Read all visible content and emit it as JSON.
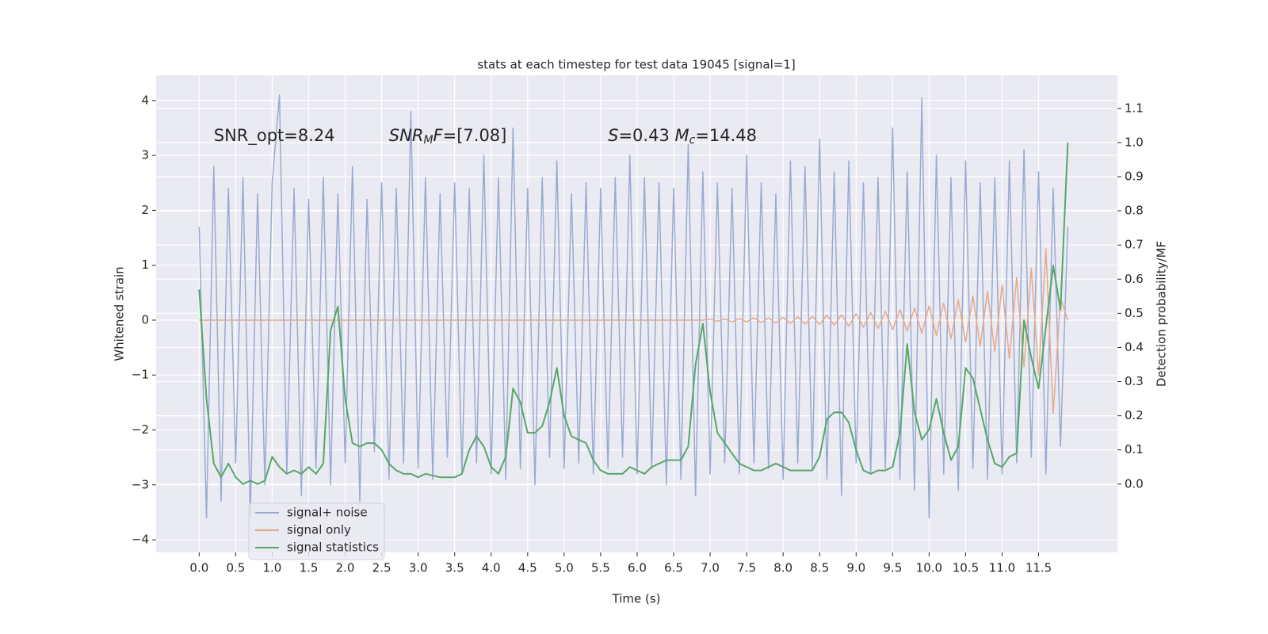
{
  "chart_data": {
    "type": "line",
    "title": "stats at each timestep for test data 19045 [signal=1]",
    "xlabel": "Time (s)",
    "ylabel": "Whitened strain",
    "y2label": "Detection probability/MF",
    "annotations": [
      {
        "x": 0.2,
        "y": 3.35,
        "parts": [
          {
            "text": "SNR_opt=8.24"
          }
        ]
      },
      {
        "x": 2.6,
        "y": 3.35,
        "parts": [
          {
            "text": "SNR",
            "italic": true
          },
          {
            "text": "M",
            "italic": true,
            "sub": true
          },
          {
            "text": "F",
            "italic": true
          },
          {
            "text": "=[7.08]"
          }
        ]
      },
      {
        "x": 5.6,
        "y": 3.35,
        "parts": [
          {
            "text": "S",
            "italic": true
          },
          {
            "text": "=0.43   "
          },
          {
            "text": "M",
            "italic": true
          },
          {
            "text": "c",
            "italic": true,
            "sub": true
          },
          {
            "text": "=14.48"
          }
        ]
      }
    ],
    "x": [
      0.0,
      0.1,
      0.2,
      0.3,
      0.4,
      0.5,
      0.6,
      0.7,
      0.8,
      0.9,
      1.0,
      1.1,
      1.2,
      1.3,
      1.4,
      1.5,
      1.6,
      1.7,
      1.8,
      1.9,
      2.0,
      2.1,
      2.2,
      2.3,
      2.4,
      2.5,
      2.6,
      2.7,
      2.8,
      2.9,
      3.0,
      3.1,
      3.2,
      3.3,
      3.4,
      3.5,
      3.6,
      3.7,
      3.8,
      3.9,
      4.0,
      4.1,
      4.2,
      4.3,
      4.4,
      4.5,
      4.6,
      4.7,
      4.8,
      4.9,
      5.0,
      5.1,
      5.2,
      5.3,
      5.4,
      5.5,
      5.6,
      5.7,
      5.8,
      5.9,
      6.0,
      6.1,
      6.2,
      6.3,
      6.4,
      6.5,
      6.6,
      6.7,
      6.8,
      6.9,
      7.0,
      7.1,
      7.2,
      7.3,
      7.4,
      7.5,
      7.6,
      7.7,
      7.8,
      7.9,
      8.0,
      8.1,
      8.2,
      8.3,
      8.4,
      8.5,
      8.6,
      8.7,
      8.8,
      8.9,
      9.0,
      9.1,
      9.2,
      9.3,
      9.4,
      9.5,
      9.6,
      9.7,
      9.8,
      9.9,
      10.0,
      10.1,
      10.2,
      10.3,
      10.4,
      10.5,
      10.6,
      10.7,
      10.8,
      10.9,
      11.0,
      11.1,
      11.2,
      11.3,
      11.4,
      11.5,
      11.6,
      11.7,
      11.8,
      11.9
    ],
    "series": [
      {
        "name": "signal+ noise",
        "color": "#9aabd0",
        "axis": "y",
        "values": [
          1.7,
          -3.6,
          2.8,
          -3.3,
          2.4,
          -2.6,
          2.6,
          -3.6,
          2.3,
          -3.0,
          2.5,
          4.1,
          -2.8,
          2.4,
          -3.2,
          2.2,
          -2.7,
          2.6,
          -3.0,
          2.3,
          -2.6,
          2.8,
          -3.3,
          2.2,
          -2.4,
          2.5,
          -2.9,
          2.4,
          -2.6,
          3.8,
          -2.7,
          2.6,
          -2.9,
          2.3,
          -2.5,
          2.5,
          -2.8,
          2.4,
          -2.6,
          3.0,
          -2.8,
          2.6,
          -2.9,
          3.5,
          -2.7,
          2.4,
          -3.0,
          2.6,
          -2.5,
          2.9,
          -2.7,
          2.3,
          -2.6,
          2.5,
          -2.8,
          2.4,
          -2.7,
          2.6,
          -2.5,
          3.0,
          -2.8,
          2.6,
          -2.7,
          2.5,
          -3.0,
          2.4,
          -2.9,
          3.2,
          -3.2,
          2.7,
          -2.8,
          2.5,
          -2.6,
          2.4,
          -2.8,
          3.0,
          -2.6,
          2.5,
          -2.7,
          2.3,
          -2.9,
          2.9,
          -2.6,
          2.8,
          -2.7,
          3.3,
          -2.9,
          2.7,
          -3.2,
          2.9,
          -2.6,
          2.5,
          -2.8,
          2.6,
          -2.7,
          3.5,
          -2.9,
          2.7,
          -3.1,
          4.05,
          -3.6,
          3.0,
          -2.8,
          2.6,
          -3.1,
          2.9,
          -2.7,
          2.5,
          -2.9,
          2.6,
          -2.8,
          2.9,
          -2.6,
          3.1,
          -2.5,
          2.7,
          -2.8,
          2.4,
          -2.3,
          1.7
        ]
      },
      {
        "name": "signal only",
        "color": "#e8a98a",
        "axis": "y",
        "values": [
          0,
          0,
          0,
          0,
          0,
          0,
          0,
          0,
          0,
          0,
          0,
          0,
          0,
          0,
          0,
          0,
          0,
          0,
          0,
          0,
          0,
          0,
          0,
          0,
          0,
          0,
          0,
          0,
          0,
          0,
          0,
          0,
          0,
          0,
          0,
          0,
          0,
          0,
          0,
          0,
          0,
          0,
          0,
          0,
          0,
          0,
          0,
          0,
          0,
          0,
          0,
          0,
          0,
          0,
          0,
          0,
          0,
          0,
          0,
          0,
          0,
          0,
          0,
          0,
          0,
          0,
          0,
          0,
          0,
          0,
          0.02,
          -0.02,
          0.02,
          -0.03,
          0.03,
          -0.03,
          0.04,
          -0.04,
          0.04,
          -0.05,
          0.05,
          -0.06,
          0.06,
          -0.07,
          0.07,
          -0.08,
          0.09,
          -0.09,
          0.1,
          -0.11,
          0.12,
          -0.13,
          0.14,
          -0.15,
          0.16,
          -0.17,
          0.19,
          -0.2,
          0.22,
          -0.24,
          0.26,
          -0.28,
          0.31,
          -0.34,
          0.37,
          -0.4,
          0.44,
          -0.48,
          0.53,
          -0.58,
          0.64,
          -0.7,
          0.78,
          -0.85,
          0.95,
          -1.0,
          1.3,
          -1.7,
          0.4,
          0
        ]
      },
      {
        "name": "signal statistics",
        "color": "#55a868",
        "axis": "y2",
        "values": [
          0.57,
          0.25,
          0.06,
          0.02,
          0.06,
          0.02,
          0.0,
          0.01,
          0.0,
          0.01,
          0.08,
          0.05,
          0.03,
          0.04,
          0.03,
          0.05,
          0.03,
          0.06,
          0.45,
          0.52,
          0.25,
          0.12,
          0.11,
          0.12,
          0.12,
          0.1,
          0.06,
          0.04,
          0.03,
          0.03,
          0.02,
          0.03,
          0.025,
          0.02,
          0.02,
          0.02,
          0.03,
          0.1,
          0.14,
          0.11,
          0.05,
          0.03,
          0.08,
          0.28,
          0.24,
          0.15,
          0.15,
          0.17,
          0.24,
          0.34,
          0.2,
          0.14,
          0.13,
          0.12,
          0.07,
          0.04,
          0.03,
          0.03,
          0.03,
          0.05,
          0.04,
          0.03,
          0.05,
          0.06,
          0.07,
          0.07,
          0.07,
          0.11,
          0.35,
          0.47,
          0.27,
          0.15,
          0.12,
          0.09,
          0.06,
          0.05,
          0.04,
          0.04,
          0.05,
          0.06,
          0.05,
          0.04,
          0.04,
          0.04,
          0.04,
          0.08,
          0.19,
          0.21,
          0.21,
          0.18,
          0.1,
          0.04,
          0.03,
          0.04,
          0.04,
          0.05,
          0.15,
          0.41,
          0.21,
          0.13,
          0.16,
          0.25,
          0.15,
          0.07,
          0.11,
          0.34,
          0.31,
          0.22,
          0.13,
          0.06,
          0.05,
          0.08,
          0.09,
          0.48,
          0.37,
          0.28,
          0.46,
          0.64,
          0.51,
          1.0
        ]
      }
    ],
    "xlim": [
      -0.59,
      12.58
    ],
    "ylim": [
      -4.23,
      4.46
    ],
    "y2lim": [
      -0.2,
      1.197
    ],
    "xticks": [
      {
        "value": 0,
        "label": "0.0"
      },
      0.5,
      {
        "value": 1,
        "label": "1.0"
      },
      1.5,
      {
        "value": 2,
        "label": "2.0"
      },
      2.5,
      {
        "value": 3,
        "label": "3.0"
      },
      3.5,
      {
        "value": 4,
        "label": "4.0"
      },
      4.5,
      {
        "value": 5,
        "label": "5.0"
      },
      5.5,
      {
        "value": 6,
        "label": "6.0"
      },
      6.5,
      {
        "value": 7,
        "label": "7.0"
      },
      7.5,
      {
        "value": 8,
        "label": "8.0"
      },
      8.5,
      {
        "value": 9,
        "label": "9.0"
      },
      9.5,
      {
        "value": 10,
        "label": "10.0"
      },
      10.5,
      {
        "value": 11,
        "label": "11.0"
      },
      11.5
    ],
    "yticks": [
      {
        "value": -4,
        "label": "−4"
      },
      {
        "value": -3,
        "label": "−3"
      },
      {
        "value": -2,
        "label": "−2"
      },
      {
        "value": -1,
        "label": "−1"
      },
      0,
      1,
      2,
      3,
      4
    ],
    "y2ticks": [
      {
        "value": 0,
        "label": "0.0"
      },
      0.1,
      0.2,
      0.3,
      0.4,
      0.5,
      0.6,
      0.7,
      0.8,
      0.9,
      {
        "value": 1,
        "label": "1.0"
      },
      1.1
    ],
    "grid": true,
    "legend": "lower left"
  }
}
